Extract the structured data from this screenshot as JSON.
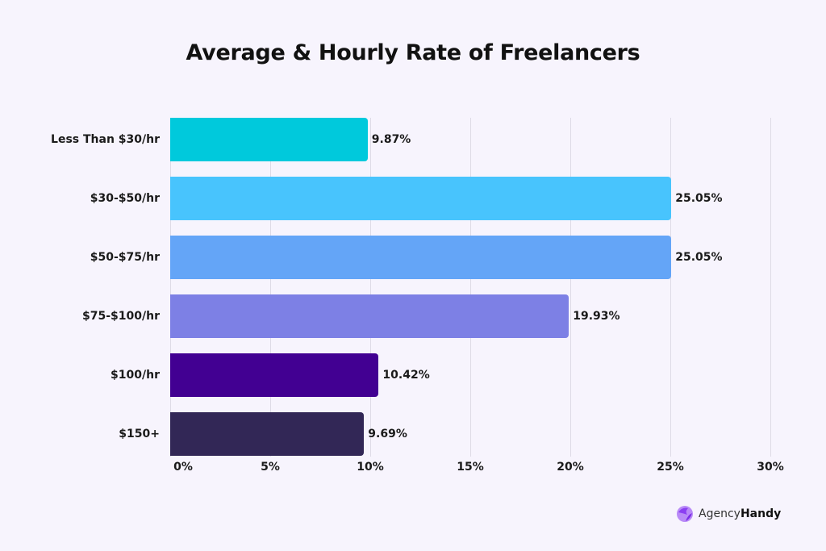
{
  "title": "Average & Hourly Rate of Freelancers",
  "brand": {
    "name_regular": "Agency",
    "name_bold": "Handy",
    "accent": "#8b3ff2"
  },
  "chart_data": {
    "type": "bar",
    "orientation": "horizontal",
    "title": "Average & Hourly Rate of Freelancers",
    "xlabel": "",
    "ylabel": "",
    "categories": [
      "Less Than $30/hr",
      "$30-$50/hr",
      "$50-$75/hr",
      "$75-$100/hr",
      "$100/hr",
      "$150+"
    ],
    "values": [
      9.87,
      25.05,
      25.05,
      19.93,
      10.42,
      9.69
    ],
    "value_labels": [
      "9.87%",
      "25.05%",
      "25.05%",
      "19.93%",
      "10.42%",
      "9.69%"
    ],
    "colors": [
      "#00c9dc",
      "#48c4fd",
      "#64a5f7",
      "#7d80e5",
      "#420092",
      "#322756"
    ],
    "xlim": [
      0,
      30
    ],
    "xticks": [
      "0%",
      "5%",
      "10%",
      "15%",
      "20%",
      "25%",
      "30%"
    ],
    "grid": true,
    "legend": "none"
  }
}
